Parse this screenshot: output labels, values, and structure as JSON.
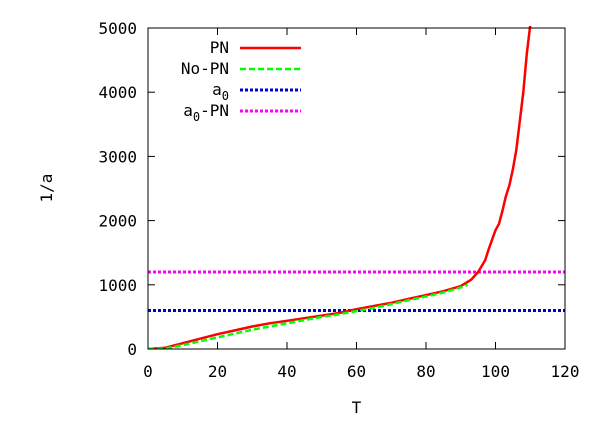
{
  "chart_data": {
    "type": "line",
    "title": "",
    "xlabel": "T",
    "ylabel": "1/a",
    "xlim": [
      0,
      120
    ],
    "ylim": [
      0,
      5000
    ],
    "x_ticks": [
      "0",
      "20",
      "40",
      "60",
      "80",
      "100",
      "120"
    ],
    "y_ticks": [
      "0",
      "1000",
      "2000",
      "3000",
      "4000",
      "5000"
    ],
    "grid": false,
    "legend_position": "top-left",
    "series": [
      {
        "name": "PN",
        "color": "#ff0000",
        "style": "solid",
        "x": [
          0,
          5,
          10,
          15,
          20,
          25,
          30,
          35,
          40,
          45,
          50,
          55,
          60,
          65,
          70,
          75,
          80,
          85,
          90,
          93,
          95,
          97,
          98,
          99,
          100,
          101,
          102,
          103,
          104,
          105,
          106,
          107,
          108,
          109,
          110
        ],
        "y": [
          0,
          20,
          90,
          160,
          230,
          290,
          350,
          400,
          440,
          480,
          520,
          560,
          620,
          670,
          720,
          780,
          840,
          900,
          980,
          1080,
          1200,
          1380,
          1550,
          1700,
          1850,
          1950,
          2150,
          2380,
          2550,
          2800,
          3100,
          3550,
          4000,
          4600,
          5050
        ]
      },
      {
        "name": "No-PN",
        "color": "#00ff00",
        "style": "dashed",
        "x": [
          0,
          5,
          10,
          15,
          20,
          25,
          30,
          35,
          40,
          45,
          50,
          55,
          60,
          65,
          70,
          75,
          80,
          85,
          90,
          92
        ],
        "y": [
          0,
          10,
          60,
          120,
          180,
          240,
          300,
          350,
          400,
          450,
          500,
          540,
          590,
          640,
          700,
          760,
          820,
          880,
          960,
          1000
        ]
      },
      {
        "name": "a<sub>0</sub>",
        "color": "#0000cc",
        "style": "dotted",
        "x": [
          0,
          120
        ],
        "y": [
          600,
          600
        ]
      },
      {
        "name": "a<sub>0</sub>-PN",
        "color": "#ff00ff",
        "style": "dotted",
        "x": [
          0,
          120
        ],
        "y": [
          1200,
          1200
        ]
      }
    ]
  }
}
